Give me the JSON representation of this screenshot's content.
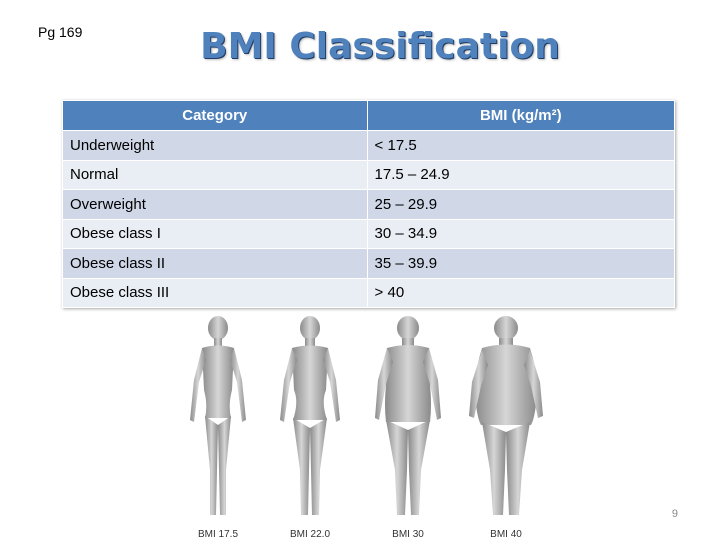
{
  "page_ref": "Pg 169",
  "title": "BMI Classification",
  "table": {
    "headers": [
      "Category",
      "BMI (kg/m²)"
    ],
    "rows": [
      [
        "Underweight",
        "< 17.5"
      ],
      [
        "Normal",
        "17.5 – 24.9"
      ],
      [
        "Overweight",
        "25 – 29.9"
      ],
      [
        "Obese class I",
        "30 – 34.9"
      ],
      [
        "Obese class II",
        "35 – 39.9"
      ],
      [
        "Obese class III",
        "> 40"
      ]
    ]
  },
  "figures": [
    {
      "label": "BMI 17.5"
    },
    {
      "label": "BMI 22.0"
    },
    {
      "label": "BMI 30"
    },
    {
      "label": "BMI 40"
    }
  ],
  "slide_number": "9",
  "colors": {
    "accent": "#4f81bd",
    "row_odd": "#d0d8e8",
    "row_even": "#e9edf4"
  }
}
